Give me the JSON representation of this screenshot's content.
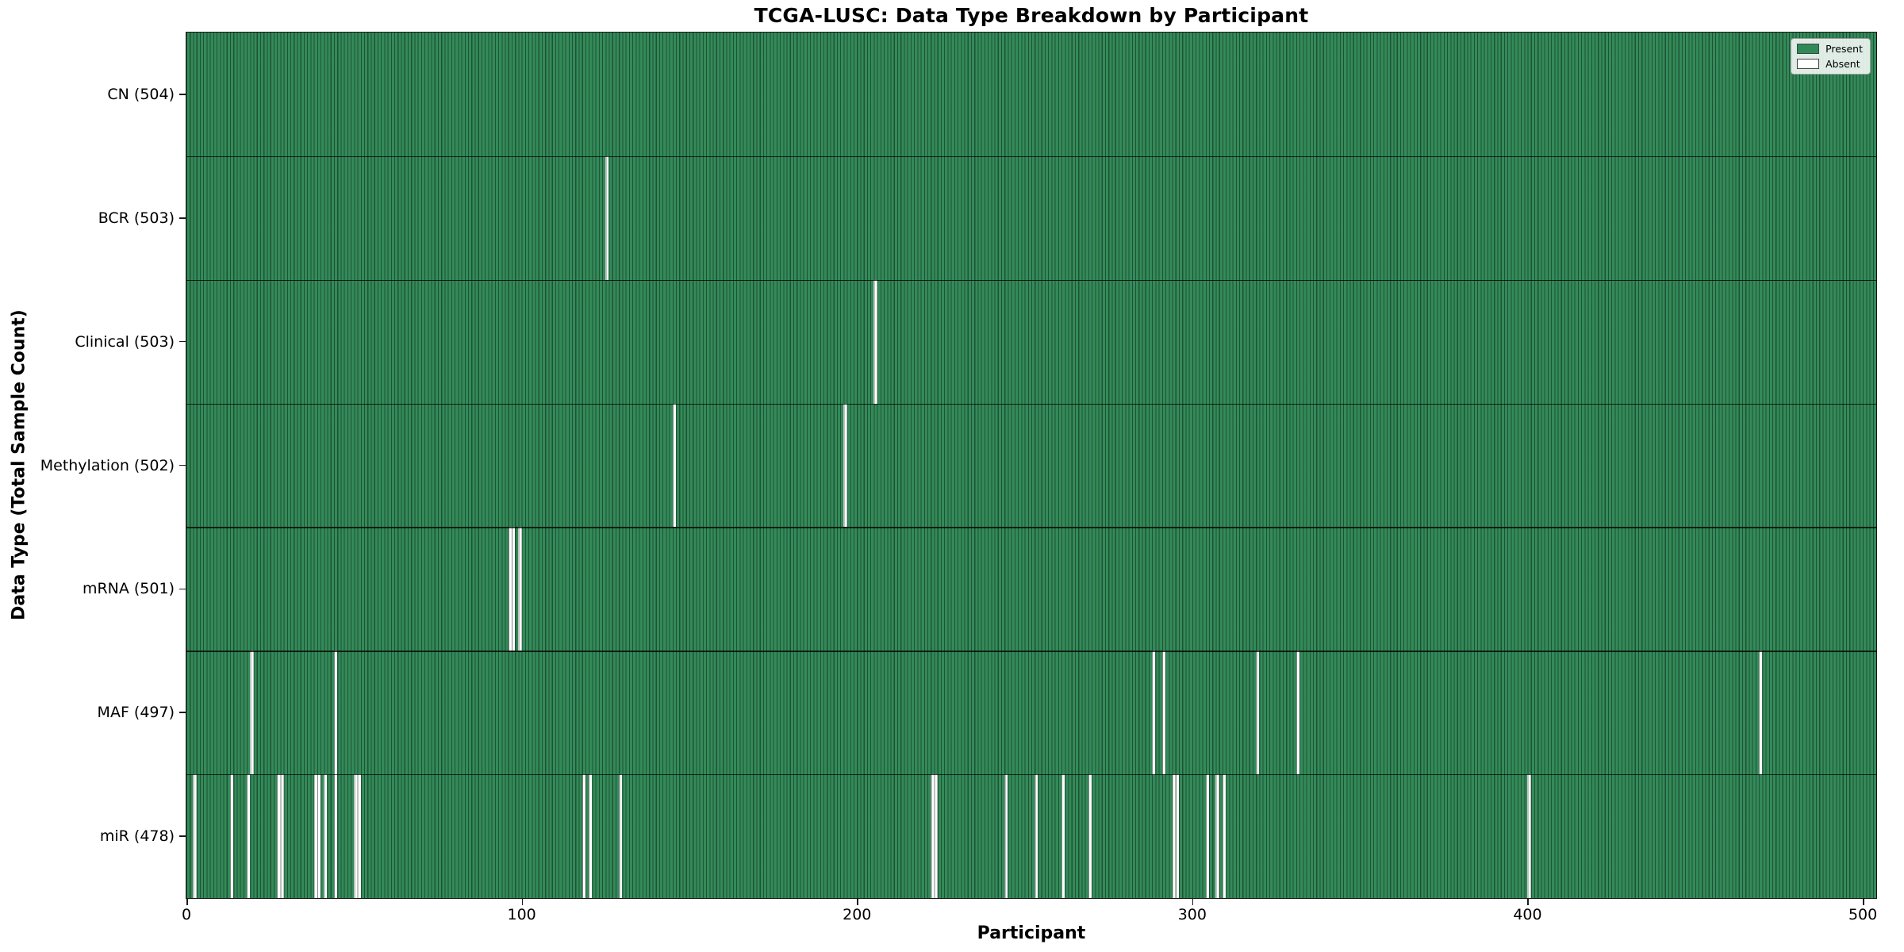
{
  "title": "TCGA-LUSC: Data Type Breakdown by Participant",
  "legend": {
    "present_label": "Present",
    "absent_label": "Absent"
  },
  "colors": {
    "present": "#2e8b57",
    "present_fill": "#348a59",
    "cell_edge": "rgba(10,38,24,0.55)",
    "absent": "#ffffff"
  },
  "chart_data": {
    "type": "heatmap",
    "title": "TCGA-LUSC: Data Type Breakdown by Participant",
    "xlabel": "Participant",
    "ylabel": "Data Type (Total Sample Count)",
    "x_range": [
      0,
      504
    ],
    "x_ticks": [
      0,
      100,
      200,
      300,
      400,
      500
    ],
    "legend": [
      "Present",
      "Absent"
    ],
    "legend_position": "upper right",
    "grid": false,
    "total_participants": 504,
    "rows": [
      {
        "name": "CN",
        "label": "CN (504)",
        "total": 504,
        "absent_participants": []
      },
      {
        "name": "BCR",
        "label": "BCR (503)",
        "total": 503,
        "absent_participants": [
          125
        ]
      },
      {
        "name": "Clinical",
        "label": "Clinical (503)",
        "total": 503,
        "absent_participants": [
          205
        ]
      },
      {
        "name": "Methylation",
        "label": "Methylation (502)",
        "total": 502,
        "absent_participants": [
          145,
          196
        ]
      },
      {
        "name": "mRNA",
        "label": "mRNA (501)",
        "total": 501,
        "absent_participants": [
          96,
          97,
          99
        ]
      },
      {
        "name": "MAF",
        "label": "MAF (497)",
        "total": 497,
        "absent_participants": [
          19,
          44,
          288,
          291,
          319,
          331,
          469
        ]
      },
      {
        "name": "miR",
        "label": "miR (478)",
        "total": 478,
        "absent_participants": [
          2,
          13,
          18,
          27,
          28,
          38,
          39,
          41,
          44,
          50,
          51,
          118,
          120,
          129,
          222,
          223,
          244,
          253,
          261,
          269,
          294,
          295,
          304,
          307,
          309,
          400
        ]
      }
    ]
  }
}
